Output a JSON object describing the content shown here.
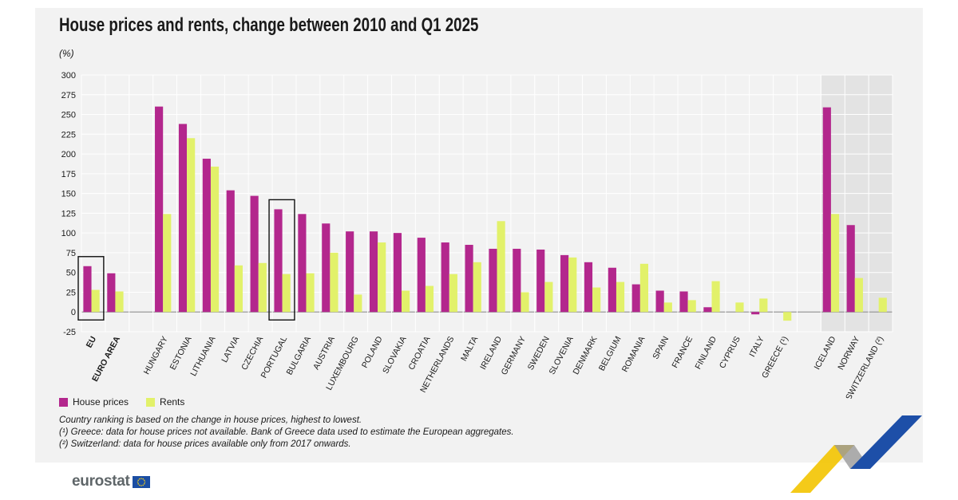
{
  "header": {
    "title": "House prices and rents, change between 2010 and Q1 2025",
    "unit": "(%)"
  },
  "colors": {
    "house_prices": "#b3278d",
    "rents": "#e2f16a",
    "non_eu_band": "#e3e3e3"
  },
  "chart_data": {
    "type": "bar",
    "title": "House prices and rents, change between 2010 and Q1 2025",
    "ylabel": "(%)",
    "ylim": [
      -25,
      300
    ],
    "yticks": [
      -25,
      0,
      25,
      50,
      75,
      100,
      125,
      150,
      175,
      200,
      225,
      250,
      275,
      300
    ],
    "grid": true,
    "legend_position": "bottom-left",
    "categories": [
      "EU",
      "EURO AREA",
      "HUNGARY",
      "ESTONIA",
      "LITHUANIA",
      "LATVIA",
      "CZECHIA",
      "PORTUGAL",
      "BULGARIA",
      "AUSTRIA",
      "LUXEMBOURG",
      "POLAND",
      "SLOVAKIA",
      "CROATIA",
      "NETHERLANDS",
      "MALTA",
      "IRELAND",
      "GERMANY",
      "SWEDEN",
      "SLOVENIA",
      "DENMARK",
      "BELGIUM",
      "ROMANIA",
      "SPAIN",
      "FRANCE",
      "FINLAND",
      "CYPRUS",
      "ITALY",
      "GREECE (¹)",
      "ICELAND",
      "NORWAY",
      "SWITZERLAND (²)"
    ],
    "series": [
      {
        "name": "House prices",
        "values": [
          58,
          49,
          260,
          238,
          194,
          154,
          147,
          130,
          124,
          112,
          102,
          102,
          100,
          94,
          88,
          85,
          80,
          80,
          79,
          72,
          63,
          56,
          35,
          27,
          26,
          6,
          0,
          -3,
          null,
          259,
          110,
          null
        ]
      },
      {
        "name": "Rents",
        "values": [
          28,
          26,
          124,
          220,
          184,
          59,
          62,
          48,
          49,
          75,
          22,
          88,
          27,
          33,
          48,
          63,
          115,
          25,
          38,
          69,
          31,
          38,
          61,
          12,
          15,
          39,
          12,
          17,
          -11,
          124,
          43,
          18
        ]
      }
    ],
    "bold_categories": [
      "EU",
      "EURO AREA"
    ],
    "highlight_boxes": [
      "EU",
      "PORTUGAL"
    ]
  },
  "legend": {
    "house_prices": "House prices",
    "rents": "Rents"
  },
  "notes": {
    "ranking": "Country ranking is based on the change in house prices, highest to lowest.",
    "greece": "(¹) Greece: data for house prices not available. Bank of Greece data used to estimate the European aggregates.",
    "switzerland": "(²) Switzerland: data for house prices available only from 2017 onwards."
  },
  "brand": {
    "name": "eurostat"
  }
}
